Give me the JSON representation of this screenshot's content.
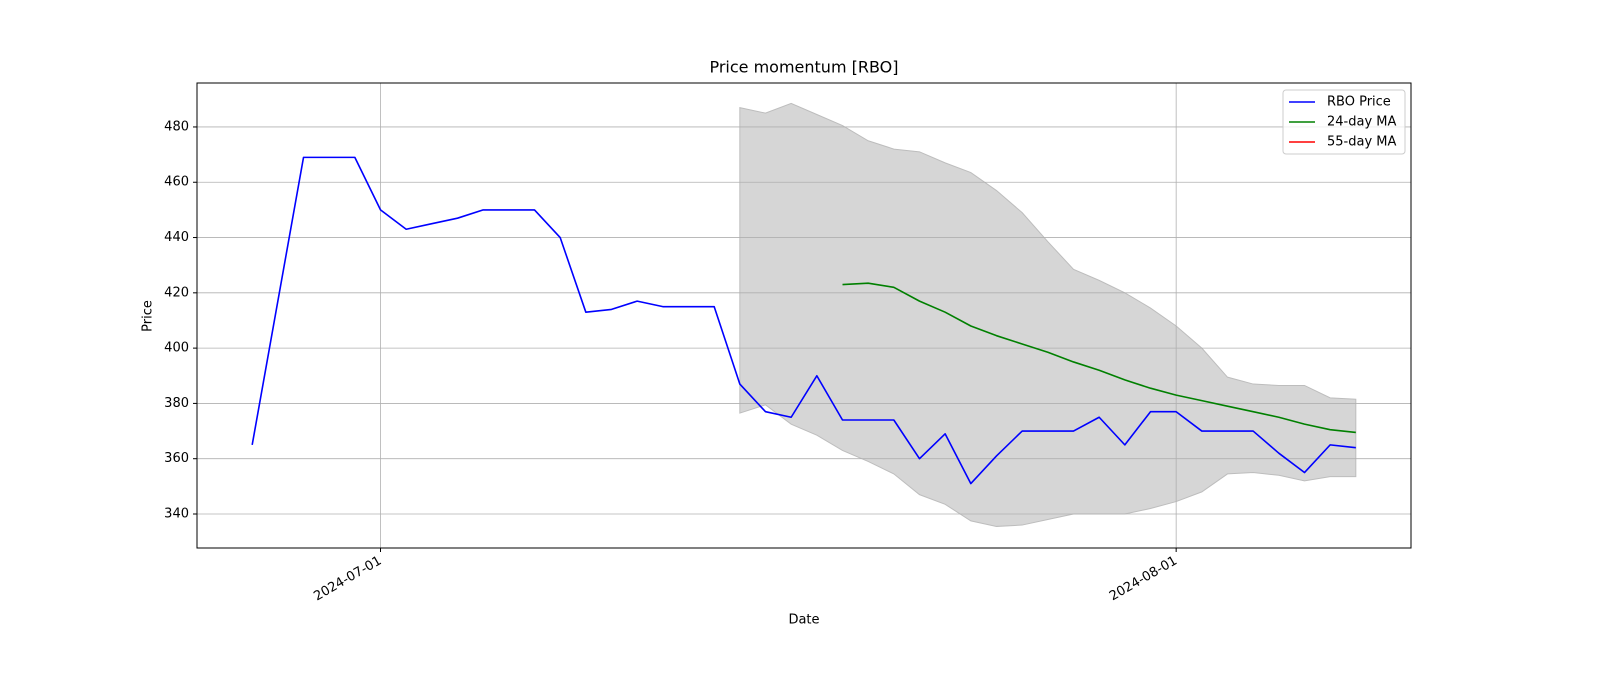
{
  "chart_data": {
    "type": "line",
    "title": "Price momentum [RBO]",
    "x_label": "Date",
    "y_label": "Price",
    "x": [
      "2024-06-26",
      "2024-06-27",
      "2024-06-28",
      "2024-06-29",
      "2024-06-30",
      "2024-07-01",
      "2024-07-02",
      "2024-07-03",
      "2024-07-04",
      "2024-07-05",
      "2024-07-06",
      "2024-07-07",
      "2024-07-08",
      "2024-07-09",
      "2024-07-10",
      "2024-07-11",
      "2024-07-12",
      "2024-07-13",
      "2024-07-14",
      "2024-07-15",
      "2024-07-16",
      "2024-07-17",
      "2024-07-18",
      "2024-07-19",
      "2024-07-20",
      "2024-07-21",
      "2024-07-22",
      "2024-07-23",
      "2024-07-24",
      "2024-07-25",
      "2024-07-26",
      "2024-07-27",
      "2024-07-28",
      "2024-07-29",
      "2024-07-30",
      "2024-07-31",
      "2024-08-01",
      "2024-08-02",
      "2024-08-03",
      "2024-08-04",
      "2024-08-05",
      "2024-08-06",
      "2024-08-07",
      "2024-08-08"
    ],
    "series": [
      {
        "name": "RBO Price",
        "color": "#0000ff",
        "values": [
          365,
          417,
          469,
          469,
          469,
          450,
          443,
          445,
          447,
          450,
          450,
          450,
          440,
          413,
          414,
          417,
          415,
          415,
          415,
          387,
          377,
          375,
          390,
          374,
          374,
          374,
          360,
          369,
          351,
          361,
          370,
          370,
          370,
          375,
          365,
          377,
          377,
          370,
          370,
          370,
          362,
          355,
          365,
          364
        ]
      },
      {
        "name": "24-day MA",
        "color": "#008000",
        "values": [
          null,
          null,
          null,
          null,
          null,
          null,
          null,
          null,
          null,
          null,
          null,
          null,
          null,
          null,
          null,
          null,
          null,
          null,
          null,
          null,
          null,
          null,
          null,
          423,
          423.5,
          422,
          417,
          413,
          408,
          404.5,
          401.5,
          398.5,
          395,
          392,
          388.5,
          385.5,
          383,
          381,
          379,
          377,
          375,
          372.5,
          370.5,
          369.5
        ]
      },
      {
        "name": "55-day MA",
        "color": "#ff0000",
        "values": [
          null,
          null,
          null,
          null,
          null,
          null,
          null,
          null,
          null,
          null,
          null,
          null,
          null,
          null,
          null,
          null,
          null,
          null,
          null,
          null,
          null,
          null,
          null,
          null,
          null,
          null,
          null,
          null,
          null,
          null,
          null,
          null,
          null,
          null,
          null,
          null,
          null,
          null,
          null,
          null,
          null,
          null,
          null,
          null
        ]
      }
    ],
    "band": {
      "color": "#d6d6d6",
      "upper": [
        null,
        null,
        null,
        null,
        null,
        null,
        null,
        null,
        null,
        null,
        null,
        null,
        null,
        null,
        null,
        null,
        null,
        null,
        null,
        487,
        485,
        488.5,
        484.5,
        480.5,
        475,
        472,
        471,
        467,
        463.5,
        457,
        449,
        438.5,
        428.5,
        424.5,
        420,
        414.5,
        408,
        400,
        389.5,
        387,
        386.5,
        386.5,
        382,
        381.5
      ],
      "lower": [
        null,
        null,
        null,
        null,
        null,
        null,
        null,
        null,
        null,
        null,
        null,
        null,
        null,
        null,
        null,
        null,
        null,
        null,
        null,
        376.5,
        379.5,
        372.5,
        368.5,
        363,
        359,
        354.5,
        347,
        343.5,
        337.5,
        335.5,
        336,
        338,
        340,
        340,
        340,
        342,
        344.5,
        348,
        354.5,
        355,
        354,
        352,
        353.5,
        353.5
      ]
    },
    "xlim": [
      "2024-06-23T20:24Z",
      "2024-08-10T03:36Z"
    ],
    "xticks": [
      "2024-07-01",
      "2024-08-01"
    ],
    "ylim": [
      327.7,
      495.9
    ],
    "yticks": [
      340,
      360,
      380,
      400,
      420,
      440,
      460,
      480
    ],
    "grid": true,
    "legend": "upper right"
  }
}
